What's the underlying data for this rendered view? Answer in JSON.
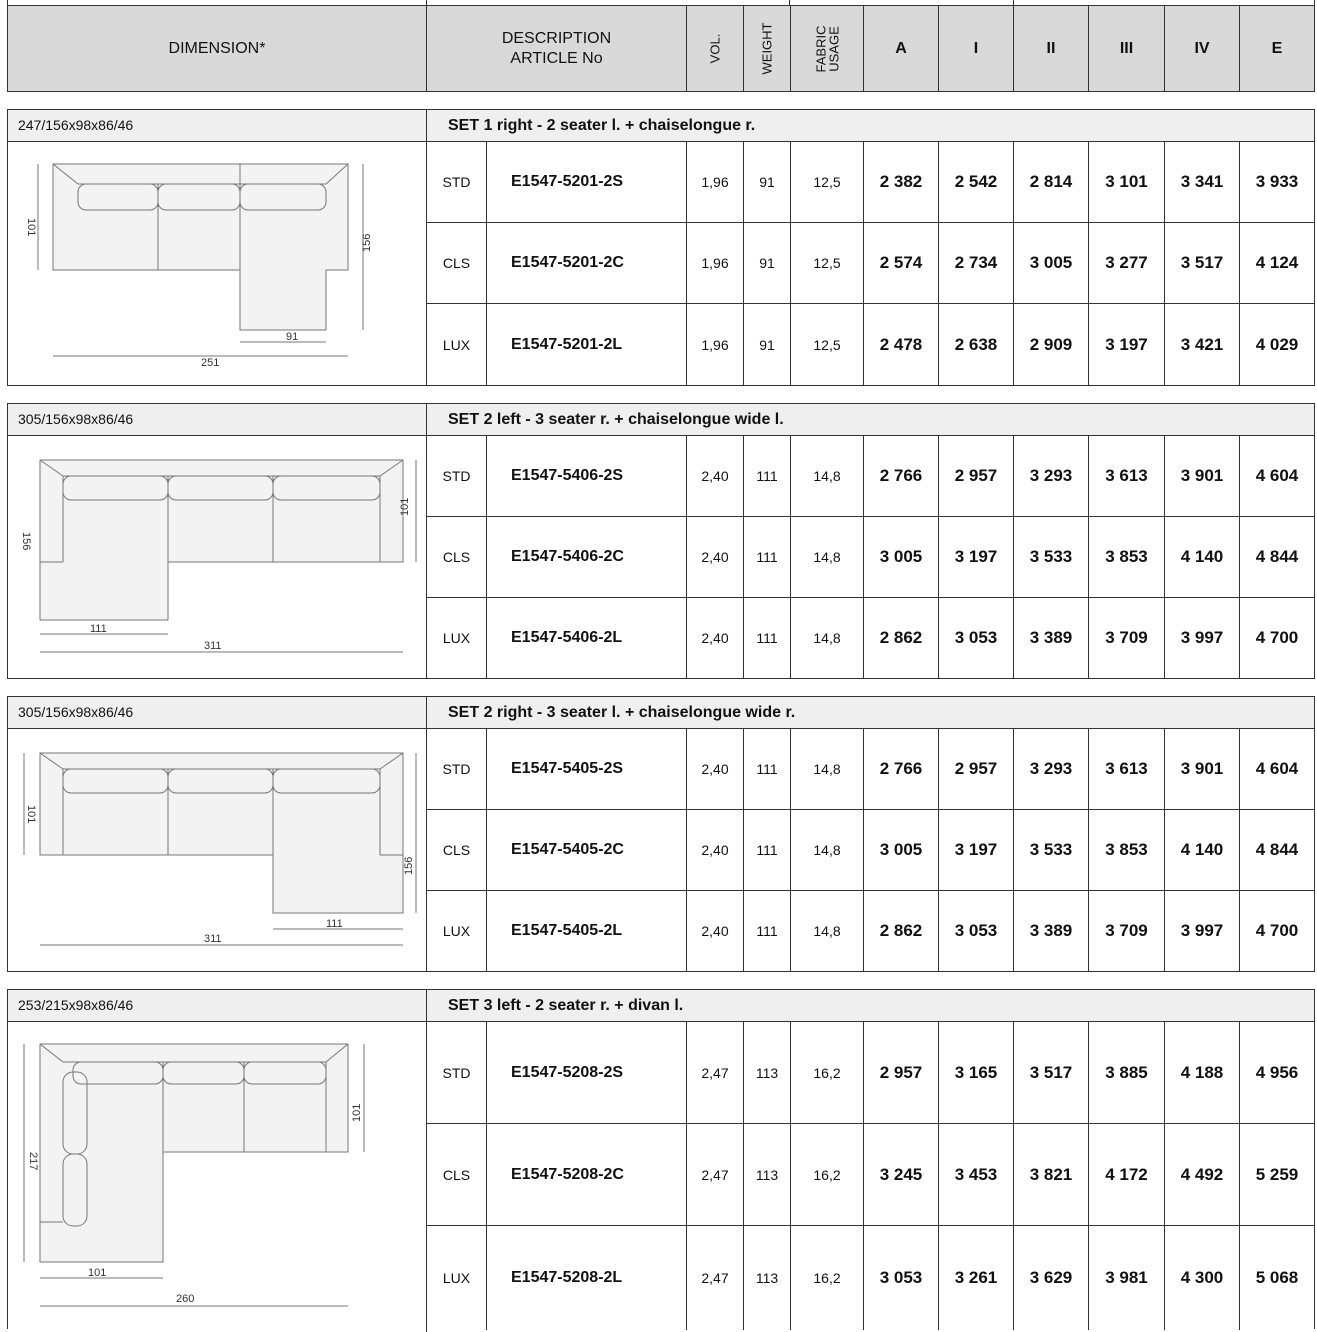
{
  "header": {
    "dimension": "DIMENSION*",
    "description_line1": "DESCRIPTION",
    "description_line2": "ARTICLE No",
    "vol": "VOL.",
    "weight": "WEIGHT",
    "fabric_line1": "FABRIC",
    "fabric_line2": "USAGE",
    "price_groups": [
      "A",
      "I",
      "II",
      "III",
      "IV",
      "E"
    ]
  },
  "sets": [
    {
      "dimension": "247/156x98x86/46",
      "title": "SET 1 right - 2 seater l. + chaiselongue r.",
      "drawing_labels": [
        "101",
        "156",
        "91",
        "251"
      ],
      "rows": [
        {
          "type": "STD",
          "article": "E1547-5201-2S",
          "vol": "1,96",
          "weight": "91",
          "fabric": "12,5",
          "prices": [
            "2 382",
            "2 542",
            "2 814",
            "3 101",
            "3 341",
            "3 933"
          ]
        },
        {
          "type": "CLS",
          "article": "E1547-5201-2C",
          "vol": "1,96",
          "weight": "91",
          "fabric": "12,5",
          "prices": [
            "2 574",
            "2 734",
            "3 005",
            "3 277",
            "3 517",
            "4 124"
          ]
        },
        {
          "type": "LUX",
          "article": "E1547-5201-2L",
          "vol": "1,96",
          "weight": "91",
          "fabric": "12,5",
          "prices": [
            "2 478",
            "2 638",
            "2 909",
            "3 197",
            "3 421",
            "4 029"
          ]
        }
      ]
    },
    {
      "dimension": "305/156x98x86/46",
      "title": "SET 2 left - 3 seater r. + chaiselongue wide l.",
      "drawing_labels": [
        "156",
        "101",
        "111",
        "311"
      ],
      "rows": [
        {
          "type": "STD",
          "article": "E1547-5406-2S",
          "vol": "2,40",
          "weight": "111",
          "fabric": "14,8",
          "prices": [
            "2 766",
            "2 957",
            "3 293",
            "3 613",
            "3 901",
            "4 604"
          ]
        },
        {
          "type": "CLS",
          "article": "E1547-5406-2C",
          "vol": "2,40",
          "weight": "111",
          "fabric": "14,8",
          "prices": [
            "3 005",
            "3 197",
            "3 533",
            "3 853",
            "4 140",
            "4 844"
          ]
        },
        {
          "type": "LUX",
          "article": "E1547-5406-2L",
          "vol": "2,40",
          "weight": "111",
          "fabric": "14,8",
          "prices": [
            "2 862",
            "3 053",
            "3 389",
            "3 709",
            "3 997",
            "4 700"
          ]
        }
      ]
    },
    {
      "dimension": "305/156x98x86/46",
      "title": "SET 2 right - 3 seater l. + chaiselongue wide r.",
      "drawing_labels": [
        "101",
        "156",
        "111",
        "311"
      ],
      "rows": [
        {
          "type": "STD",
          "article": "E1547-5405-2S",
          "vol": "2,40",
          "weight": "111",
          "fabric": "14,8",
          "prices": [
            "2 766",
            "2 957",
            "3 293",
            "3 613",
            "3 901",
            "4 604"
          ]
        },
        {
          "type": "CLS",
          "article": "E1547-5405-2C",
          "vol": "2,40",
          "weight": "111",
          "fabric": "14,8",
          "prices": [
            "3 005",
            "3 197",
            "3 533",
            "3 853",
            "4 140",
            "4 844"
          ]
        },
        {
          "type": "LUX",
          "article": "E1547-5405-2L",
          "vol": "2,40",
          "weight": "111",
          "fabric": "14,8",
          "prices": [
            "2 862",
            "3 053",
            "3 389",
            "3 709",
            "3 997",
            "4 700"
          ]
        }
      ]
    },
    {
      "dimension": "253/215x98x86/46",
      "title": "SET 3 left - 2 seater r. + divan l.",
      "drawing_labels": [
        "217",
        "101",
        "101",
        "260"
      ],
      "rows": [
        {
          "type": "STD",
          "article": "E1547-5208-2S",
          "vol": "2,47",
          "weight": "113",
          "fabric": "16,2",
          "prices": [
            "2 957",
            "3 165",
            "3 517",
            "3 885",
            "4 188",
            "4 956"
          ]
        },
        {
          "type": "CLS",
          "article": "E1547-5208-2C",
          "vol": "2,47",
          "weight": "113",
          "fabric": "16,2",
          "prices": [
            "3 245",
            "3 453",
            "3 821",
            "4 172",
            "4 492",
            "5 259"
          ]
        },
        {
          "type": "LUX",
          "article": "E1547-5208-2L",
          "vol": "2,47",
          "weight": "113",
          "fabric": "16,2",
          "prices": [
            "3 053",
            "3 261",
            "3 629",
            "3 981",
            "4 300",
            "5 068"
          ]
        }
      ]
    }
  ]
}
